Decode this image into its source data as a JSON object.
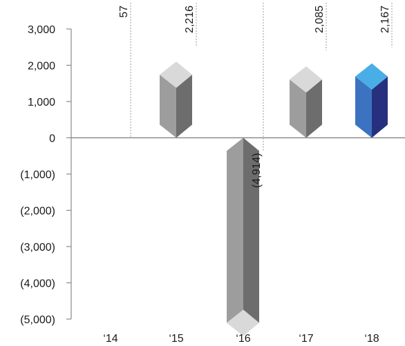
{
  "chart_data": {
    "type": "bar",
    "categories": [
      "‘14",
      "‘15",
      "‘16",
      "‘17",
      "‘18"
    ],
    "values": [
      57,
      2216,
      -4914,
      2085,
      2167
    ],
    "data_labels": [
      "57",
      "2,216",
      "(4,914)",
      "2,085",
      "2,167"
    ],
    "highlight_index": 4,
    "y_ticks": [
      {
        "value": 3000,
        "label": "3,000"
      },
      {
        "value": 2000,
        "label": "2,000"
      },
      {
        "value": 1000,
        "label": "1,000"
      },
      {
        "value": 0,
        "label": "0"
      },
      {
        "value": -1000,
        "label": "(1,000)"
      },
      {
        "value": -2000,
        "label": "(2,000)"
      },
      {
        "value": -3000,
        "label": "(3,000)"
      },
      {
        "value": -4000,
        "label": "(4,000)"
      },
      {
        "value": -5000,
        "label": "(5,000)"
      }
    ],
    "ylim": [
      -5000,
      3000
    ],
    "grid": false,
    "legend": "none",
    "colors": {
      "bar_front": "#9d9d9d",
      "bar_side": "#6d6d6d",
      "bar_top": "#d9d9d9",
      "highlight_front": "#3b73c0",
      "highlight_side": "#27307e",
      "highlight_top": "#4aaee6",
      "highlight_text": "#3a3f95",
      "axis": "#8a8a8a",
      "text": "#1a1a1a"
    }
  }
}
